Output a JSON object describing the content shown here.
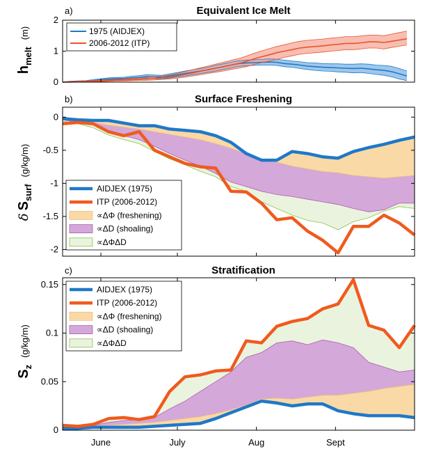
{
  "chart_data": [
    {
      "type": "line",
      "panel_label": "a)",
      "title": "Equivalent Ice Melt",
      "ylabel_main": "h",
      "ylabel_sub": "melt",
      "ylabel_unit": "(m)",
      "ylim": [
        0,
        2
      ],
      "yticks": [
        0,
        1,
        2
      ],
      "series": [
        {
          "name": "1975 (AIDJEX)",
          "color": "#1f78c8",
          "band_color": "#7db4e6",
          "x": [
            0,
            3,
            6,
            9,
            12,
            15,
            18,
            21,
            24,
            27,
            30,
            33,
            36,
            39,
            42,
            45,
            48,
            51,
            54,
            57,
            60,
            63,
            66,
            69,
            72,
            75,
            78,
            81,
            84,
            87,
            90,
            93,
            96,
            99,
            102,
            105,
            108,
            111,
            114,
            117,
            120,
            123,
            126,
            129,
            132,
            135
          ],
          "y": [
            0,
            0.01,
            0.02,
            0.03,
            0.05,
            0.08,
            0.1,
            0.11,
            0.12,
            0.14,
            0.15,
            0.18,
            0.17,
            0.16,
            0.2,
            0.24,
            0.28,
            0.32,
            0.36,
            0.4,
            0.45,
            0.5,
            0.55,
            0.6,
            0.62,
            0.63,
            0.64,
            0.65,
            0.64,
            0.6,
            0.58,
            0.55,
            0.52,
            0.5,
            0.48,
            0.47,
            0.46,
            0.45,
            0.44,
            0.45,
            0.43,
            0.4,
            0.38,
            0.34,
            0.27,
            0.2
          ],
          "lower": [
            0,
            0,
            0.01,
            0.02,
            0.03,
            0.05,
            0.07,
            0.08,
            0.08,
            0.09,
            0.1,
            0.12,
            0.11,
            0.1,
            0.13,
            0.17,
            0.2,
            0.24,
            0.28,
            0.32,
            0.36,
            0.41,
            0.46,
            0.51,
            0.53,
            0.54,
            0.55,
            0.55,
            0.54,
            0.5,
            0.48,
            0.44,
            0.41,
            0.38,
            0.36,
            0.35,
            0.33,
            0.32,
            0.3,
            0.31,
            0.28,
            0.25,
            0.22,
            0.17,
            0.1,
            0.05
          ],
          "upper": [
            0.01,
            0.03,
            0.04,
            0.05,
            0.08,
            0.11,
            0.14,
            0.15,
            0.16,
            0.19,
            0.21,
            0.24,
            0.23,
            0.22,
            0.27,
            0.31,
            0.36,
            0.4,
            0.44,
            0.48,
            0.54,
            0.59,
            0.64,
            0.69,
            0.71,
            0.72,
            0.73,
            0.75,
            0.74,
            0.71,
            0.68,
            0.66,
            0.63,
            0.62,
            0.6,
            0.59,
            0.59,
            0.58,
            0.58,
            0.59,
            0.58,
            0.55,
            0.54,
            0.51,
            0.44,
            0.36
          ]
        },
        {
          "name": "2006-2012 (ITP)",
          "color": "#e8542b",
          "band_color": "#f5a898",
          "x": [
            0,
            3,
            6,
            9,
            12,
            15,
            18,
            21,
            24,
            27,
            30,
            33,
            36,
            39,
            42,
            45,
            48,
            51,
            54,
            57,
            60,
            63,
            66,
            69,
            72,
            75,
            78,
            81,
            84,
            87,
            90,
            93,
            96,
            99,
            102,
            105,
            108,
            111,
            114,
            117,
            120,
            123,
            126,
            129,
            132,
            135
          ],
          "y": [
            0,
            0,
            0.01,
            0.02,
            0.03,
            0.04,
            0.05,
            0.06,
            0.07,
            0.08,
            0.09,
            0.1,
            0.12,
            0.14,
            0.16,
            0.2,
            0.25,
            0.3,
            0.35,
            0.4,
            0.45,
            0.5,
            0.55,
            0.6,
            0.67,
            0.75,
            0.82,
            0.88,
            0.95,
            1.0,
            1.05,
            1.1,
            1.13,
            1.15,
            1.17,
            1.2,
            1.22,
            1.25,
            1.25,
            1.27,
            1.3,
            1.3,
            1.28,
            1.32,
            1.36,
            1.4
          ],
          "lower": [
            0,
            0,
            0,
            0.01,
            0.02,
            0.02,
            0.03,
            0.04,
            0.04,
            0.05,
            0.06,
            0.06,
            0.07,
            0.09,
            0.1,
            0.13,
            0.16,
            0.2,
            0.24,
            0.28,
            0.32,
            0.36,
            0.41,
            0.45,
            0.5,
            0.57,
            0.63,
            0.68,
            0.74,
            0.8,
            0.85,
            0.9,
            0.93,
            0.95,
            0.97,
            1.0,
            1.02,
            1.05,
            1.05,
            1.07,
            1.1,
            1.1,
            1.07,
            1.12,
            1.16,
            1.2
          ],
          "upper": [
            0.01,
            0.02,
            0.03,
            0.04,
            0.05,
            0.06,
            0.08,
            0.09,
            0.1,
            0.12,
            0.13,
            0.15,
            0.17,
            0.2,
            0.23,
            0.28,
            0.34,
            0.4,
            0.46,
            0.52,
            0.58,
            0.64,
            0.7,
            0.76,
            0.84,
            0.93,
            1.01,
            1.08,
            1.15,
            1.21,
            1.27,
            1.32,
            1.35,
            1.37,
            1.39,
            1.42,
            1.44,
            1.47,
            1.47,
            1.49,
            1.52,
            1.52,
            1.5,
            1.55,
            1.6,
            1.65
          ]
        }
      ]
    },
    {
      "type": "area",
      "panel_label": "b)",
      "title": "Surface Freshening",
      "ylabel_prefix": "δ",
      "ylabel_main": "S",
      "ylabel_sub": "surf",
      "ylabel_unit": "(g/kg/m)",
      "ylim": [
        -2.1,
        0.15
      ],
      "yticks": [
        0,
        -0.5,
        -1,
        -1.5,
        -2
      ],
      "ytick_labels": [
        "0",
        "-0.5",
        "-1",
        "-1.5",
        "-2"
      ],
      "x": [
        0,
        6,
        12,
        18,
        24,
        30,
        36,
        42,
        48,
        54,
        60,
        66,
        72,
        78,
        84,
        90,
        96,
        102,
        108,
        114,
        120,
        126,
        132,
        138
      ],
      "series": [
        {
          "name": "AIDJEX (1975)",
          "color": "#1f78c8",
          "values": [
            -0.02,
            -0.04,
            -0.05,
            -0.05,
            -0.09,
            -0.13,
            -0.13,
            -0.18,
            -0.2,
            -0.22,
            -0.28,
            -0.38,
            -0.55,
            -0.65,
            -0.65,
            -0.52,
            -0.55,
            -0.6,
            -0.62,
            -0.52,
            -0.46,
            -0.41,
            -0.35,
            -0.3
          ]
        },
        {
          "name": "ITP (2006-2012)",
          "color": "#f05a1e",
          "values": [
            -0.1,
            -0.08,
            -0.1,
            -0.22,
            -0.28,
            -0.22,
            -0.5,
            -0.6,
            -0.7,
            -0.75,
            -0.77,
            -1.12,
            -1.13,
            -1.3,
            -1.55,
            -1.52,
            -1.72,
            -1.86,
            -2.05,
            -1.65,
            -1.65,
            -1.48,
            -1.6,
            -1.78
          ]
        },
        {
          "name": "∝ΔΦ (freshening)",
          "color": "#f9d9a6",
          "edge": "#f1c07a",
          "values": [
            -0.02,
            -0.05,
            -0.08,
            -0.12,
            -0.15,
            -0.18,
            -0.22,
            -0.26,
            -0.3,
            -0.34,
            -0.4,
            -0.47,
            -0.55,
            -0.63,
            -0.68,
            -0.74,
            -0.78,
            -0.82,
            -0.84,
            -0.88,
            -0.9,
            -0.92,
            -0.9,
            -0.88
          ]
        },
        {
          "name": "∝ΔD (shoaling)",
          "color": "#d4a8d9",
          "edge": "#a860b2",
          "values": [
            -0.04,
            -0.08,
            -0.12,
            -0.2,
            -0.28,
            -0.34,
            -0.44,
            -0.55,
            -0.65,
            -0.74,
            -0.85,
            -0.98,
            -1.05,
            -1.12,
            -1.17,
            -1.2,
            -1.24,
            -1.28,
            -1.32,
            -1.38,
            -1.43,
            -1.4,
            -1.3,
            -1.3
          ]
        },
        {
          "name": "∝ΔΦΔD",
          "color": "#eaf3de",
          "edge": "#8bc24b",
          "values": [
            -0.06,
            -0.1,
            -0.16,
            -0.27,
            -0.34,
            -0.4,
            -0.52,
            -0.63,
            -0.72,
            -0.82,
            -0.9,
            -1.05,
            -1.12,
            -1.28,
            -1.38,
            -1.48,
            -1.56,
            -1.6,
            -1.7,
            -1.58,
            -1.52,
            -1.42,
            -1.35,
            -1.38
          ]
        }
      ]
    },
    {
      "type": "area",
      "panel_label": "c)",
      "title": "Stratification",
      "ylabel_main": "S",
      "ylabel_sub": "z",
      "ylabel_unit": "(g/kg/m)",
      "ylim": [
        0,
        0.157
      ],
      "yticks": [
        0,
        0.05,
        0.1,
        0.15
      ],
      "ytick_labels": [
        "0",
        "0.05",
        "0.1",
        "0.15"
      ],
      "xtick_labels": [
        "June",
        "July",
        "Aug",
        "Sept"
      ],
      "x": [
        0,
        6,
        12,
        18,
        24,
        30,
        36,
        42,
        48,
        54,
        60,
        66,
        72,
        78,
        84,
        90,
        96,
        102,
        108,
        114,
        120,
        126,
        132,
        138
      ],
      "series": [
        {
          "name": "AIDJEX (1975)",
          "color": "#1f78c8",
          "values": [
            0.002,
            0.002,
            0.003,
            0.003,
            0.003,
            0.003,
            0.004,
            0.005,
            0.006,
            0.007,
            0.012,
            0.018,
            0.024,
            0.03,
            0.028,
            0.025,
            0.027,
            0.027,
            0.02,
            0.017,
            0.015,
            0.015,
            0.015,
            0.013
          ]
        },
        {
          "name": "ITP (2006-2012)",
          "color": "#f05a1e",
          "values": [
            0.005,
            0.004,
            0.006,
            0.012,
            0.013,
            0.011,
            0.014,
            0.04,
            0.055,
            0.057,
            0.061,
            0.062,
            0.092,
            0.09,
            0.107,
            0.112,
            0.115,
            0.125,
            0.13,
            0.155,
            0.108,
            0.103,
            0.085,
            0.108
          ]
        },
        {
          "name": "∝ΔΦ (freshening)",
          "color": "#f9d9a6",
          "edge": "#f1c07a",
          "values": [
            0.003,
            0.003,
            0.004,
            0.005,
            0.006,
            0.007,
            0.008,
            0.01,
            0.012,
            0.014,
            0.017,
            0.021,
            0.026,
            0.032,
            0.033,
            0.032,
            0.034,
            0.036,
            0.036,
            0.038,
            0.04,
            0.043,
            0.045,
            0.047
          ]
        },
        {
          "name": "∝ΔD (shoaling)",
          "color": "#d4a8d9",
          "edge": "#a860b2",
          "values": [
            0.004,
            0.004,
            0.005,
            0.008,
            0.01,
            0.011,
            0.013,
            0.022,
            0.03,
            0.04,
            0.05,
            0.06,
            0.075,
            0.08,
            0.09,
            0.092,
            0.088,
            0.093,
            0.09,
            0.085,
            0.07,
            0.065,
            0.06,
            0.062
          ]
        },
        {
          "name": "∝ΔΦΔD",
          "color": "#eaf3de",
          "edge": "#8bc24b",
          "values": [
            0.005,
            0.004,
            0.006,
            0.012,
            0.013,
            0.011,
            0.014,
            0.04,
            0.055,
            0.057,
            0.061,
            0.062,
            0.092,
            0.09,
            0.107,
            0.112,
            0.115,
            0.125,
            0.13,
            0.155,
            0.108,
            0.103,
            0.085,
            0.108
          ]
        }
      ]
    }
  ],
  "x_axis": {
    "xlim": [
      0,
      138
    ],
    "ticks": [
      {
        "label": "June",
        "x": 15
      },
      {
        "label": "July",
        "x": 45
      },
      {
        "label": "Aug",
        "x": 76
      },
      {
        "label": "Sept",
        "x": 107
      }
    ]
  }
}
